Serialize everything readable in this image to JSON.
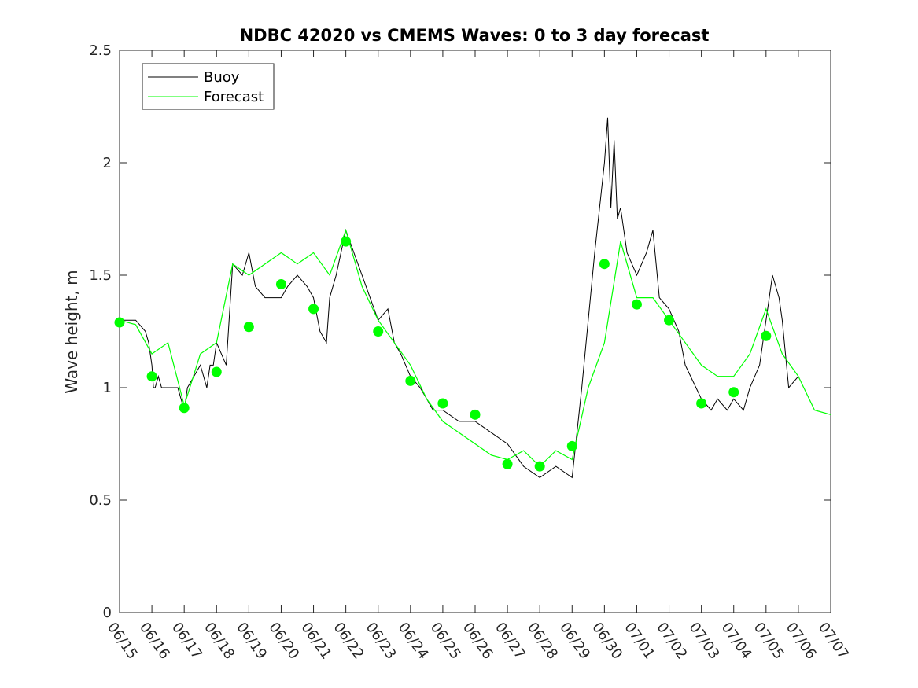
{
  "chart_data": {
    "type": "line",
    "title": "NDBC 42020 vs CMEMS Waves: 0 to 3 day forecast",
    "xlabel": "",
    "ylabel": "Wave height, m",
    "ylim": [
      0,
      2.5
    ],
    "yticks": [
      0,
      0.5,
      1,
      1.5,
      2,
      2.5
    ],
    "ytick_labels": [
      "0",
      "0.5",
      "1",
      "1.5",
      "2",
      "2.5"
    ],
    "xlim_days": [
      0,
      22
    ],
    "xtick_labels": [
      "06/15",
      "06/16",
      "06/17",
      "06/18",
      "06/19",
      "06/20",
      "06/21",
      "06/22",
      "06/23",
      "06/24",
      "06/25",
      "06/26",
      "06/27",
      "06/28",
      "06/29",
      "06/30",
      "07/01",
      "07/02",
      "07/03",
      "07/04",
      "07/05",
      "07/06",
      "07/07"
    ],
    "grid": false,
    "legend": {
      "placement": "top-left",
      "entries": [
        {
          "label": "Buoy",
          "color": "#000000"
        },
        {
          "label": "Forecast",
          "color": "#00ff00"
        }
      ]
    },
    "series": [
      {
        "name": "Buoy",
        "color": "#000000",
        "x": [
          0,
          0.5,
          0.8,
          0.9,
          1.0,
          1.05,
          1.1,
          1.2,
          1.3,
          1.5,
          1.8,
          2.0,
          2.1,
          2.3,
          2.5,
          2.7,
          2.8,
          2.9,
          3.0,
          3.3,
          3.5,
          3.8,
          4.0,
          4.2,
          4.5,
          4.8,
          5.0,
          5.2,
          5.5,
          5.8,
          6.0,
          6.2,
          6.4,
          6.5,
          6.7,
          7.0,
          7.5,
          8.0,
          8.3,
          8.5,
          8.7,
          9.0,
          9.3,
          9.5,
          9.7,
          10.0,
          10.5,
          11.0,
          11.5,
          12.0,
          12.5,
          13.0,
          13.5,
          14.0,
          14.3,
          14.5,
          14.7,
          15.0,
          15.1,
          15.2,
          15.3,
          15.4,
          15.5,
          15.7,
          16.0,
          16.3,
          16.5,
          16.7,
          17.0,
          17.3,
          17.5,
          18.0,
          18.3,
          18.5,
          18.8,
          19.0,
          19.3,
          19.5,
          19.8,
          20.0,
          20.2,
          20.4,
          20.5,
          20.7,
          21.0
        ],
        "values": [
          1.3,
          1.3,
          1.25,
          1.2,
          1.1,
          1.0,
          1.0,
          1.05,
          1.0,
          1.0,
          1.0,
          0.9,
          1.0,
          1.05,
          1.1,
          1.0,
          1.1,
          1.1,
          1.2,
          1.1,
          1.55,
          1.5,
          1.6,
          1.45,
          1.4,
          1.4,
          1.4,
          1.45,
          1.5,
          1.45,
          1.4,
          1.25,
          1.2,
          1.4,
          1.5,
          1.7,
          1.5,
          1.3,
          1.35,
          1.2,
          1.15,
          1.05,
          1.0,
          0.95,
          0.9,
          0.9,
          0.85,
          0.85,
          0.8,
          0.75,
          0.65,
          0.6,
          0.65,
          0.6,
          1.0,
          1.3,
          1.6,
          2.0,
          2.2,
          1.8,
          2.1,
          1.75,
          1.8,
          1.6,
          1.5,
          1.6,
          1.7,
          1.4,
          1.35,
          1.25,
          1.1,
          0.95,
          0.9,
          0.95,
          0.9,
          0.95,
          0.9,
          1.0,
          1.1,
          1.3,
          1.5,
          1.4,
          1.3,
          1.0,
          1.05
        ]
      },
      {
        "name": "Forecast",
        "color": "#00ff00",
        "x": [
          0,
          0.5,
          1.0,
          1.5,
          2.0,
          2.5,
          3.0,
          3.5,
          4.0,
          4.5,
          5.0,
          5.5,
          6.0,
          6.5,
          7.0,
          7.5,
          8.0,
          8.5,
          9.0,
          9.5,
          10.0,
          10.5,
          11.0,
          11.5,
          12.0,
          12.5,
          13.0,
          13.5,
          14.0,
          14.5,
          15.0,
          15.5,
          16.0,
          16.5,
          17.0,
          17.5,
          18.0,
          18.5,
          19.0,
          19.5,
          20.0,
          20.5,
          21.0,
          21.5,
          22.0
        ],
        "values": [
          1.3,
          1.28,
          1.15,
          1.2,
          0.92,
          1.15,
          1.2,
          1.55,
          1.5,
          1.55,
          1.6,
          1.55,
          1.6,
          1.5,
          1.7,
          1.45,
          1.3,
          1.2,
          1.1,
          0.95,
          0.85,
          0.8,
          0.75,
          0.7,
          0.68,
          0.72,
          0.65,
          0.72,
          0.68,
          1.0,
          1.2,
          1.65,
          1.4,
          1.4,
          1.3,
          1.2,
          1.1,
          1.05,
          1.05,
          1.15,
          1.35,
          1.15,
          1.05,
          0.9,
          0.88
        ]
      }
    ],
    "analysis_markers": {
      "color": "#00ff00",
      "x": [
        0,
        1,
        2,
        3,
        4,
        5,
        6,
        7,
        8,
        9,
        10,
        11,
        12,
        13,
        14,
        15,
        16,
        17,
        18,
        19,
        20
      ],
      "values": [
        1.29,
        1.05,
        0.91,
        1.07,
        1.27,
        1.46,
        1.35,
        1.65,
        1.25,
        1.03,
        0.93,
        0.88,
        0.66,
        0.65,
        0.74,
        1.55,
        1.37,
        1.3,
        0.93,
        0.98,
        1.23
      ]
    }
  }
}
